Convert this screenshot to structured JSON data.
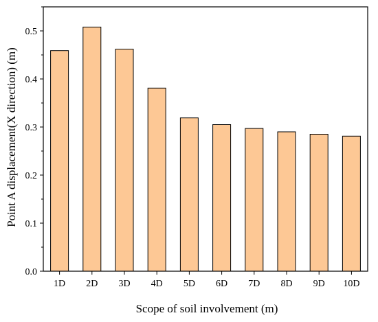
{
  "chart_data": {
    "type": "bar",
    "title": "",
    "xlabel": "Scope of soil involvement (m)",
    "ylabel": "Point A displacement(X direction) (m)",
    "categories": [
      "1D",
      "2D",
      "3D",
      "4D",
      "5D",
      "6D",
      "7D",
      "8D",
      "9D",
      "10D"
    ],
    "values": [
      0.459,
      0.508,
      0.462,
      0.381,
      0.319,
      0.305,
      0.297,
      0.29,
      0.285,
      0.281
    ],
    "ylim": [
      0,
      0.55
    ],
    "yticks": [
      "0.0",
      "0.1",
      "0.2",
      "0.3",
      "0.4",
      "0.5"
    ],
    "grid": false,
    "colors": {
      "bar_fill": "#FDC895",
      "bar_stroke": "#000000",
      "axis": "#000000"
    }
  }
}
